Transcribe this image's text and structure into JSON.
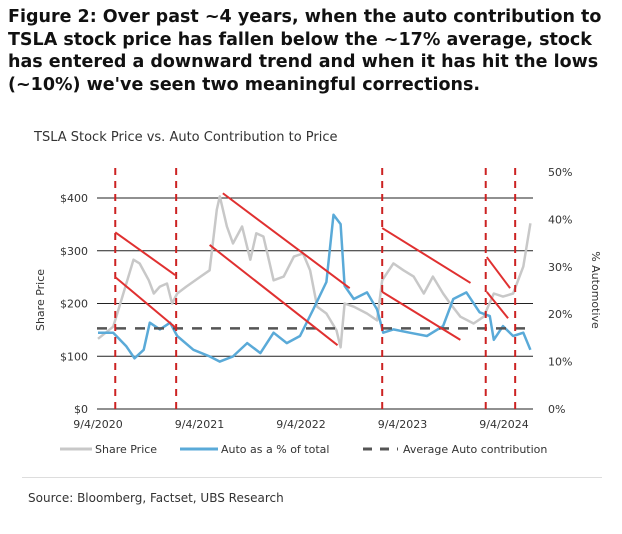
{
  "figure_title": "Figure 2: Over past ~4 years, when the auto contribution to TSLA stock price has fallen below the ~17% average, stock has entered a downward trend and when it has hit the lows (~10%) we've seen two meaningful corrections.",
  "source": "Source: Bloomberg, Factset, UBS Research",
  "colors": {
    "share_price": "#c8c8c8",
    "auto_pct": "#5aaad8",
    "average": "#555555",
    "trend": "#e03030",
    "period": "#cc2222",
    "grid": "#222222"
  },
  "chart_data": {
    "type": "line",
    "title": "TSLA Stock Price vs. Auto Contribution to Price",
    "ylabel": "Share Price",
    "y2label": "% Automotive",
    "ylim": [
      0,
      500
    ],
    "y2lim": [
      0,
      50
    ],
    "xlim": [
      2020.68,
      2024.94
    ],
    "yticks": [
      {
        "v": 0,
        "label": "$0"
      },
      {
        "v": 100,
        "label": "$100"
      },
      {
        "v": 200,
        "label": "$200"
      },
      {
        "v": 300,
        "label": "$300"
      },
      {
        "v": 400,
        "label": "$400"
      }
    ],
    "y2ticks": [
      {
        "v": 0,
        "label": "0%"
      },
      {
        "v": 10,
        "label": "10%"
      },
      {
        "v": 20,
        "label": "20%"
      },
      {
        "v": 30,
        "label": "30%"
      },
      {
        "v": 40,
        "label": "40%"
      },
      {
        "v": 50,
        "label": "50%"
      }
    ],
    "xticks": [
      {
        "v": 2020.68,
        "label": "9/4/2020"
      },
      {
        "v": 2021.68,
        "label": "9/4/2021"
      },
      {
        "v": 2022.68,
        "label": "9/4/2022"
      },
      {
        "v": 2023.68,
        "label": "9/4/2023"
      },
      {
        "v": 2024.68,
        "label": "9/4/2024"
      }
    ],
    "series": [
      {
        "name": "Share Price",
        "axis": "left",
        "x": [
          2020.68,
          2020.83,
          2020.91,
          2021.03,
          2021.09,
          2021.18,
          2021.23,
          2021.29,
          2021.36,
          2021.41,
          2021.46,
          2021.55,
          2021.69,
          2021.78,
          2021.85,
          2021.88,
          2021.95,
          2022.01,
          2022.1,
          2022.18,
          2022.24,
          2022.31,
          2022.41,
          2022.51,
          2022.61,
          2022.7,
          2022.77,
          2022.84,
          2022.93,
          2023.03,
          2023.07,
          2023.11,
          2023.2,
          2023.33,
          2023.43,
          2023.48,
          2023.59,
          2023.69,
          2023.79,
          2023.89,
          2023.98,
          2024.08,
          2024.15,
          2024.25,
          2024.38,
          2024.48,
          2024.58,
          2024.67,
          2024.77,
          2024.87,
          2024.94
        ],
        "y": [
          133,
          156,
          206,
          283,
          276,
          244,
          219,
          232,
          238,
          200,
          219,
          232,
          251,
          263,
          378,
          403,
          346,
          314,
          346,
          283,
          333,
          327,
          244,
          251,
          289,
          295,
          263,
          194,
          181,
          149,
          117,
          200,
          194,
          181,
          168,
          244,
          276,
          263,
          251,
          219,
          251,
          219,
          200,
          175,
          162,
          175,
          219,
          213,
          219,
          270,
          352
        ]
      },
      {
        "name": "Auto as a % of total",
        "axis": "right",
        "x": [
          2020.68,
          2020.83,
          2020.96,
          2021.04,
          2021.13,
          2021.19,
          2021.29,
          2021.39,
          2021.46,
          2021.62,
          2021.78,
          2021.88,
          2022.01,
          2022.15,
          2022.28,
          2022.41,
          2022.54,
          2022.67,
          2022.8,
          2022.93,
          2023.0,
          2023.07,
          2023.11,
          2023.2,
          2023.33,
          2023.43,
          2023.49,
          2023.59,
          2023.75,
          2023.92,
          2024.08,
          2024.18,
          2024.31,
          2024.44,
          2024.54,
          2024.58,
          2024.67,
          2024.77,
          2024.87,
          2024.94
        ],
        "y": [
          16.1,
          16.1,
          13.2,
          10.7,
          12.5,
          18.2,
          16.8,
          18.2,
          15.4,
          12.5,
          11.1,
          10,
          11.1,
          13.9,
          11.8,
          16.1,
          13.9,
          15.4,
          21,
          26.8,
          41,
          39,
          26,
          23.2,
          24.6,
          21,
          16.1,
          16.8,
          16.1,
          15.4,
          17.5,
          23.2,
          24.6,
          20.4,
          19.6,
          14.6,
          17.5,
          15.4,
          16.1,
          12.5
        ]
      }
    ],
    "average": {
      "name": "Average Auto contribution",
      "value": 17
    },
    "period_markers": [
      2020.85,
      2021.45,
      2023.48,
      2024.5,
      2024.79
    ],
    "trend_lines": [
      {
        "x": [
          2020.85,
          2021.44
        ],
        "y": [
          335,
          254
        ]
      },
      {
        "x": [
          2020.85,
          2021.44
        ],
        "y": [
          250,
          155
        ]
      },
      {
        "x": [
          2021.91,
          2023.16
        ],
        "y": [
          409,
          229
        ]
      },
      {
        "x": [
          2021.78,
          2023.04
        ],
        "y": [
          311,
          121
        ]
      },
      {
        "x": [
          2023.48,
          2024.35
        ],
        "y": [
          343,
          239
        ]
      },
      {
        "x": [
          2023.48,
          2024.25
        ],
        "y": [
          222,
          131
        ]
      },
      {
        "x": [
          2024.51,
          2024.74
        ],
        "y": [
          288,
          229
        ]
      },
      {
        "x": [
          2024.51,
          2024.72
        ],
        "y": [
          222,
          172
        ]
      }
    ],
    "legend": {
      "position": "bottom",
      "entries": [
        "Share Price",
        "Auto as a % of total",
        "Average Auto contribution"
      ]
    },
    "grid": true
  }
}
